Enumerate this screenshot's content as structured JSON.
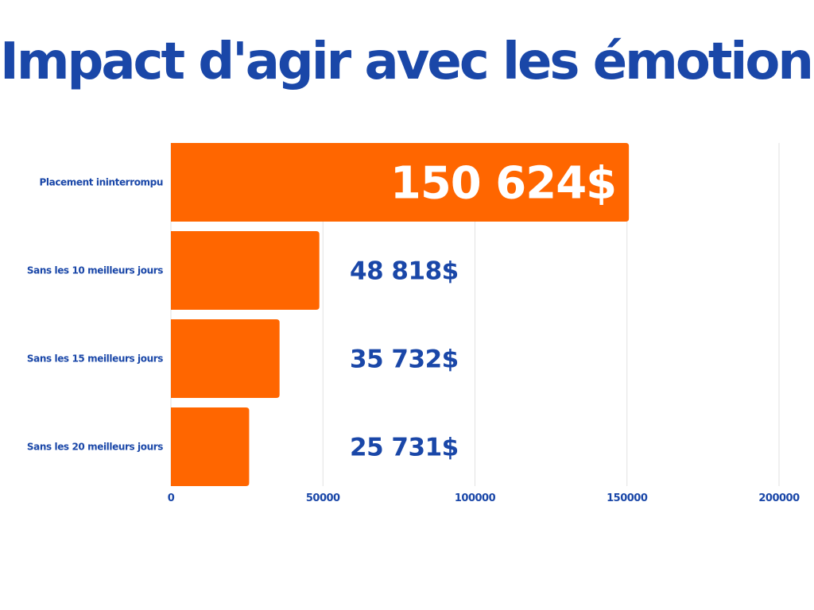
{
  "colors": {
    "title": "#1a47a8",
    "bar": "#ff6600",
    "label": "#1a47a8",
    "value_inside": "#ffffff",
    "grid": "#e2e2e2"
  },
  "chart_data": {
    "type": "bar",
    "orientation": "horizontal",
    "title": "Impact d'agir avec les émotions",
    "xlabel": "",
    "ylabel": "",
    "categories": [
      "Placement ininterrompu",
      "Sans les 10 meilleurs jours",
      "Sans les 15 meilleurs jours",
      "Sans les 20 meilleurs jours"
    ],
    "values": [
      150624,
      48818,
      35732,
      25731
    ],
    "data_labels": [
      "150 624$",
      "48 818$",
      "35 732$",
      "25 731$"
    ],
    "xlim": [
      0,
      200000
    ],
    "x_ticks": [
      0,
      50000,
      100000,
      150000,
      200000
    ],
    "x_tick_labels": [
      "0",
      "50000",
      "100000",
      "150000",
      "200000"
    ],
    "grid": "vertical",
    "legend": "none"
  }
}
